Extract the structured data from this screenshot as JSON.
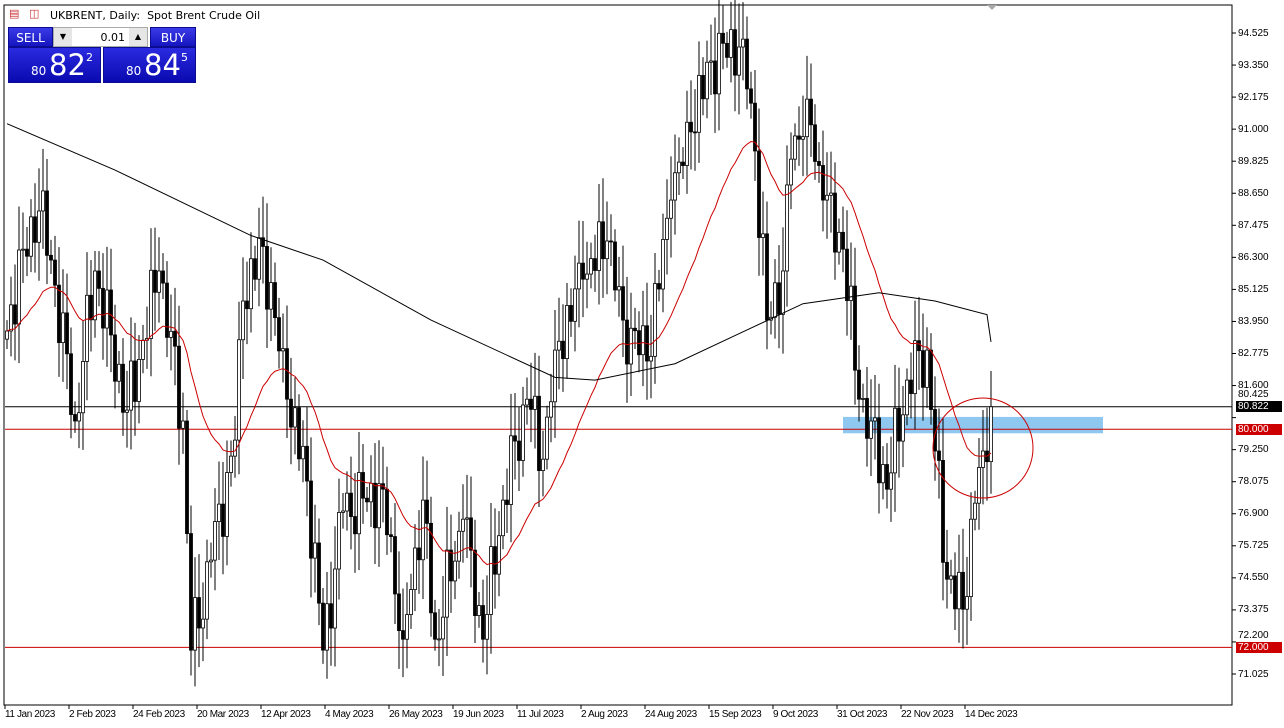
{
  "header": {
    "title": "UKBRENT, Daily:  Spot Brent Crude Oil",
    "icons": [
      "depth-of-market-icon",
      "chart-properties-icon"
    ]
  },
  "trade_panel": {
    "sell_label": "SELL",
    "buy_label": "BUY",
    "lot_value": "0.01",
    "sell_price": {
      "prefix": "80",
      "big": "82",
      "sup": "2"
    },
    "buy_price": {
      "prefix": "80",
      "big": "84",
      "sup": "5"
    },
    "color": "#1a1acc"
  },
  "chart_data": {
    "type": "candlestick",
    "title": "UKBRENT, Daily:  Spot Brent Crude Oil",
    "ylim": [
      70.2,
      95.3
    ],
    "y_ticks": [
      "94.525",
      "93.350",
      "92.175",
      "91.000",
      "89.825",
      "88.650",
      "87.475",
      "86.300",
      "85.125",
      "83.950",
      "82.775",
      "81.600",
      "80.425",
      "79.250",
      "78.075",
      "76.900",
      "75.725",
      "74.550",
      "73.375",
      "72.200",
      "71.025"
    ],
    "x_ticks": [
      "11 Jan 2023",
      "2 Feb 2023",
      "24 Feb 2023",
      "20 Mar 2023",
      "12 Apr 2023",
      "4 May 2023",
      "26 May 2023",
      "19 Jun 2023",
      "11 Jul 2023",
      "2 Aug 2023",
      "24 Aug 2023",
      "15 Sep 2023",
      "9 Oct 2023",
      "31 Oct 2023",
      "22 Nov 2023",
      "14 Dec 2023"
    ],
    "approx_closes": [
      [
        "2023-01-11",
        83.6
      ],
      [
        "2023-01-17",
        86.6
      ],
      [
        "2023-01-23",
        88.0
      ],
      [
        "2023-01-26",
        86.2
      ],
      [
        "2023-02-03",
        80.3
      ],
      [
        "2023-02-10",
        85.8
      ],
      [
        "2023-02-22",
        80.7
      ],
      [
        "2023-03-06",
        85.8
      ],
      [
        "2023-03-14",
        80.3
      ],
      [
        "2023-03-16",
        71.9
      ],
      [
        "2023-03-23",
        75.2
      ],
      [
        "2023-03-31",
        79.6
      ],
      [
        "2023-04-04",
        84.7
      ],
      [
        "2023-04-11",
        86.7
      ],
      [
        "2023-04-19",
        81.1
      ],
      [
        "2023-04-26",
        78.1
      ],
      [
        "2023-05-02",
        71.9
      ],
      [
        "2023-05-09",
        77.0
      ],
      [
        "2023-05-23",
        77.8
      ],
      [
        "2023-05-30",
        72.3
      ],
      [
        "2023-06-06",
        77.4
      ],
      [
        "2023-06-09",
        72.3
      ],
      [
        "2023-06-20",
        76.7
      ],
      [
        "2023-06-27",
        72.3
      ],
      [
        "2023-07-04",
        77.4
      ],
      [
        "2023-07-12",
        81.1
      ],
      [
        "2023-07-18",
        78.9
      ],
      [
        "2023-07-21",
        82.9
      ],
      [
        "2023-08-01",
        85.5
      ],
      [
        "2023-08-09",
        86.9
      ],
      [
        "2023-08-15",
        84.0
      ],
      [
        "2023-08-23",
        82.5
      ],
      [
        "2023-08-31",
        88.4
      ],
      [
        "2023-09-07",
        90.9
      ],
      [
        "2023-09-14",
        93.5
      ],
      [
        "2023-09-26",
        94.3
      ],
      [
        "2023-09-29",
        90.2
      ],
      [
        "2023-10-04",
        84.0
      ],
      [
        "2023-10-10",
        85.8
      ],
      [
        "2023-10-12",
        89.9
      ],
      [
        "2023-10-18",
        92.1
      ],
      [
        "2023-10-24",
        88.4
      ],
      [
        "2023-10-31",
        86.6
      ],
      [
        "2023-11-06",
        81.1
      ],
      [
        "2023-11-09",
        80.3
      ],
      [
        "2023-11-15",
        77.8
      ],
      [
        "2023-11-22",
        81.8
      ],
      [
        "2023-11-29",
        82.9
      ],
      [
        "2023-12-01",
        79.2
      ],
      [
        "2023-12-06",
        74.5
      ],
      [
        "2023-12-12",
        73.4
      ],
      [
        "2023-12-14",
        76.7
      ],
      [
        "2023-12-19",
        79.2
      ],
      [
        "2023-12-21",
        80.822
      ]
    ],
    "slow_ma": {
      "color": "#000000",
      "points": [
        [
          "2023-01-11",
          91.2
        ],
        [
          "2023-02-17",
          89.5
        ],
        [
          "2023-04-06",
          87.1
        ],
        [
          "2023-05-02",
          86.2
        ],
        [
          "2023-06-08",
          84.0
        ],
        [
          "2023-07-21",
          81.9
        ],
        [
          "2023-08-04",
          81.8
        ],
        [
          "2023-09-01",
          82.4
        ],
        [
          "2023-09-25",
          83.5
        ],
        [
          "2023-10-17",
          84.6
        ],
        [
          "2023-11-13",
          85.0
        ],
        [
          "2023-12-01",
          84.7
        ],
        [
          "2023-12-20",
          84.2
        ],
        [
          "2023-12-21",
          83.2
        ]
      ]
    },
    "fast_ma": {
      "color": "#cc0000",
      "period": 30
    },
    "current_price": {
      "label": "80.822",
      "value": 80.822,
      "color": "#000000"
    },
    "levels": [
      {
        "label": "80.000",
        "value": 80.0,
        "color": "#cc0000"
      },
      {
        "label": "72.000",
        "value": 72.0,
        "color": "#cc0000"
      }
    ],
    "zone": {
      "from_date": "2023-10-31",
      "low": 79.85,
      "high": 80.45,
      "color": "#8ec8f0"
    },
    "highlight_circle_color": "#cc0000",
    "grid": false
  }
}
